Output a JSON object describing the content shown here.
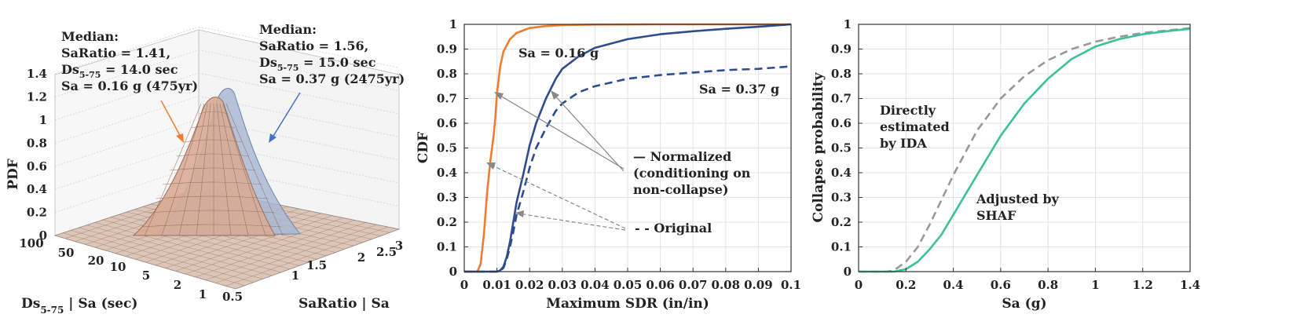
{
  "colors": {
    "orange": "#EF7D31",
    "blue": "#2E4D8F",
    "lightblue": "#4472C4",
    "green": "#3CC19A",
    "gray": "#999999",
    "text": "#222222"
  },
  "chart_data": [
    {
      "type": "surface3d",
      "zlabel": "PDF",
      "xlabel": "SaRatio | Sa",
      "ylabel_main": "Ds",
      "ylabel_sub": "5-75",
      "ylabel_rest": " | Sa (sec)",
      "z_ticks": [
        "0",
        "0.2",
        "0.4",
        "0.6",
        "0.8",
        "1",
        "1.2",
        "1.4"
      ],
      "x_ticks": [
        "0.5",
        "1",
        "1.5",
        "2",
        "2.5",
        "3"
      ],
      "y_ticks": [
        "100",
        "50",
        "20",
        "10",
        "5",
        "2",
        "1"
      ],
      "surfaces": [
        {
          "color": "#EF7D31",
          "median_saratio": 1.41,
          "median_ds": 14.0,
          "sa_g": 0.16,
          "peak_pdf": 1.18
        },
        {
          "color": "#4472C4",
          "median_saratio": 1.56,
          "median_ds": 15.0,
          "sa_g": 0.37,
          "peak_pdf": 1.22
        }
      ],
      "annotations": {
        "orange": {
          "l1": "Median:",
          "l2": "SaRatio = 1.41,",
          "l3a": "Ds",
          "l3sub": "5-75",
          "l3b": " = 14.0 sec",
          "l4": "Sa = 0.16 g (475yr)"
        },
        "blue": {
          "l1": "Median:",
          "l2": "SaRatio = 1.56,",
          "l3a": "Ds",
          "l3sub": "5-75",
          "l3b": " = 15.0 sec",
          "l4": "Sa = 0.37 g (2475yr)"
        }
      }
    },
    {
      "type": "line",
      "xlabel": "Maximum SDR (in/in)",
      "ylabel": "CDF",
      "xlim": [
        0,
        0.1
      ],
      "ylim": [
        0,
        1
      ],
      "x_ticks": [
        "0",
        "0.01",
        "0.02",
        "0.03",
        "0.04",
        "0.05",
        "0.06",
        "0.07",
        "0.08",
        "0.09",
        "0.1"
      ],
      "y_ticks": [
        "0",
        "0.1",
        "0.2",
        "0.3",
        "0.4",
        "0.5",
        "0.6",
        "0.7",
        "0.8",
        "0.9",
        "1"
      ],
      "grid": true,
      "series": [
        {
          "style": "solid",
          "color": "#EF7D31",
          "x": [
            0,
            0.004,
            0.005,
            0.006,
            0.007,
            0.008,
            0.009,
            0.0095,
            0.01,
            0.011,
            0.012,
            0.014,
            0.016,
            0.02,
            0.025,
            0.03,
            0.04,
            0.06,
            0.1
          ],
          "y": [
            0,
            0,
            0.03,
            0.15,
            0.32,
            0.45,
            0.55,
            0.62,
            0.72,
            0.83,
            0.89,
            0.94,
            0.965,
            0.985,
            0.993,
            0.997,
            0.999,
            1.0,
            1.0
          ]
        },
        {
          "style": "dashed",
          "color": "#2E4D8F",
          "x": [
            0,
            0.01,
            0.011,
            0.012,
            0.013,
            0.014,
            0.015,
            0.016,
            0.018,
            0.02,
            0.022,
            0.025,
            0.028,
            0.03,
            0.035,
            0.04,
            0.05,
            0.06,
            0.07,
            0.08,
            0.09,
            0.1
          ],
          "y": [
            0,
            0,
            0.004,
            0.015,
            0.05,
            0.1,
            0.16,
            0.23,
            0.32,
            0.42,
            0.5,
            0.58,
            0.65,
            0.68,
            0.725,
            0.75,
            0.78,
            0.795,
            0.805,
            0.815,
            0.82,
            0.83
          ]
        },
        {
          "style": "solid",
          "color": "#2E4D8F",
          "x": [
            0,
            0.01,
            0.011,
            0.012,
            0.013,
            0.014,
            0.015,
            0.016,
            0.018,
            0.02,
            0.022,
            0.025,
            0.028,
            0.03,
            0.035,
            0.04,
            0.05,
            0.06,
            0.07,
            0.08,
            0.09,
            0.1
          ],
          "y": [
            0,
            0,
            0.005,
            0.02,
            0.06,
            0.12,
            0.2,
            0.28,
            0.39,
            0.51,
            0.6,
            0.7,
            0.78,
            0.82,
            0.87,
            0.905,
            0.94,
            0.96,
            0.972,
            0.982,
            0.99,
            1.0
          ]
        }
      ],
      "labels": {
        "orange_sa": "Sa = 0.16 g",
        "blue_sa": "Sa = 0.37 g",
        "normalized_1": "— Normalized",
        "normalized_2": "(conditioning on",
        "normalized_3": "non-collapse)",
        "original": "- - Original"
      }
    },
    {
      "type": "line",
      "xlabel": "Sa (g)",
      "ylabel": "Collapse probability",
      "xlim": [
        0,
        1.4
      ],
      "ylim": [
        0,
        1
      ],
      "x_ticks": [
        "0",
        "0.2",
        "0.4",
        "0.6",
        "0.8",
        "1",
        "1.2",
        "1.4"
      ],
      "y_ticks": [
        "0",
        "0.1",
        "0.2",
        "0.3",
        "0.4",
        "0.5",
        "0.6",
        "0.7",
        "0.8",
        "0.9",
        "1"
      ],
      "grid": true,
      "series": [
        {
          "style": "dashed",
          "color": "#999999",
          "x": [
            0,
            0.12,
            0.15,
            0.2,
            0.25,
            0.3,
            0.35,
            0.4,
            0.45,
            0.5,
            0.6,
            0.7,
            0.8,
            0.9,
            1.0,
            1.1,
            1.2,
            1.3,
            1.4
          ],
          "y": [
            0,
            0,
            0.005,
            0.04,
            0.1,
            0.19,
            0.29,
            0.39,
            0.48,
            0.57,
            0.7,
            0.79,
            0.855,
            0.9,
            0.93,
            0.95,
            0.965,
            0.975,
            0.985
          ]
        },
        {
          "style": "solid",
          "color": "#3CC19A",
          "x": [
            0,
            0.15,
            0.2,
            0.25,
            0.3,
            0.35,
            0.4,
            0.45,
            0.5,
            0.6,
            0.7,
            0.8,
            0.9,
            1.0,
            1.1,
            1.2,
            1.3,
            1.4
          ],
          "y": [
            0,
            0,
            0.01,
            0.04,
            0.09,
            0.15,
            0.23,
            0.31,
            0.39,
            0.55,
            0.68,
            0.78,
            0.86,
            0.91,
            0.94,
            0.96,
            0.972,
            0.982
          ]
        }
      ],
      "labels": {
        "directly_1": "Directly",
        "directly_2": "estimated",
        "directly_3": "by IDA",
        "adjusted_1": "Adjusted by",
        "adjusted_2": "SHAF"
      }
    }
  ]
}
